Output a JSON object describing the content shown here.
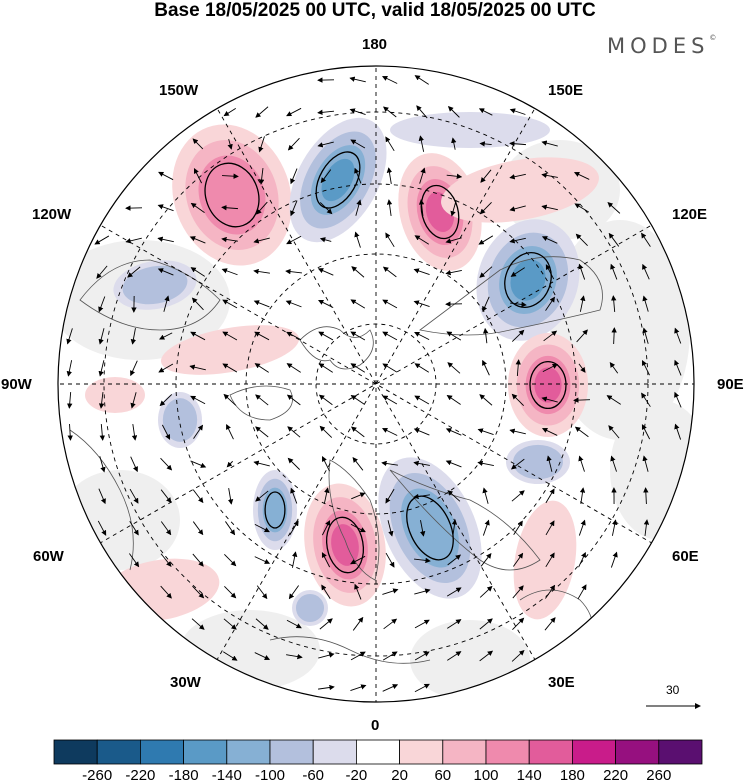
{
  "header": {
    "title": "Base 18/05/2025 00 UTC, valid 18/05/2025 00 UTC",
    "brand": "MODES",
    "brand_mark": "©"
  },
  "map": {
    "projection": "north-polar-stereographic",
    "longitude_labels": {
      "top": "180",
      "top_left": "150W",
      "top_right": "150E",
      "upper_left": "120W",
      "upper_right": "120E",
      "left": "90W",
      "right": "90E",
      "lower_left": "60W",
      "lower_right": "60E",
      "bottom_left": "30W",
      "bottom_right": "30E",
      "bottom": "0"
    },
    "reference_vector_label": "30",
    "colors": {
      "negative_strong": "#2f6ea3",
      "negative_weak": "#b3bfd9",
      "positive_strong": "#d1408f",
      "positive_weak": "#f5c2cf",
      "neutral": "#efefef",
      "coastline": "#555555"
    }
  },
  "colorbar": {
    "colors": [
      "#0e3a5e",
      "#1a5a8a",
      "#2f7ab0",
      "#5a9ac6",
      "#86b0d4",
      "#b3c0dd",
      "#dcdcec",
      "#ffffff",
      "#f9d6d8",
      "#f5b5c4",
      "#ef8aad",
      "#e25c9b",
      "#c91c8a",
      "#96107f",
      "#5a0f70"
    ],
    "labels": [
      "-260",
      "-220",
      "-180",
      "-140",
      "-100",
      "-60",
      "-20",
      "20",
      "60",
      "100",
      "140",
      "180",
      "220",
      "260"
    ]
  }
}
